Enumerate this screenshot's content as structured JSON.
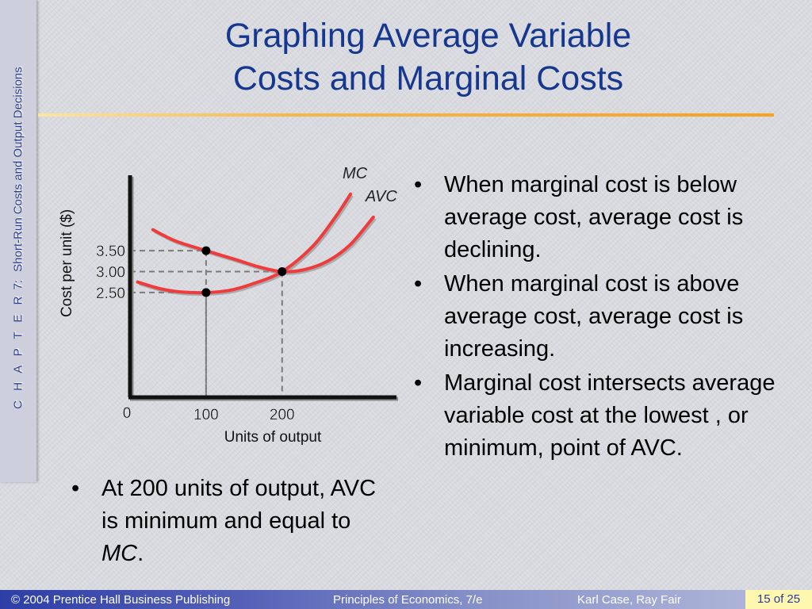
{
  "side_label": {
    "chapter": "C H A P T E R",
    "number": "7:",
    "title": "Short-Run Costs and Output Decisions"
  },
  "title": {
    "line1": "Graphing Average Variable",
    "line2": "Costs and Marginal Costs"
  },
  "colors": {
    "title": "#16378f",
    "rule": "#f4a326",
    "curve": "#ef3b3b",
    "curve_shadow": "#8a8a8a"
  },
  "chart_data": {
    "type": "line",
    "ylabel": "Cost per unit ($)",
    "xlabel": "Units of output",
    "origin_label": "0",
    "x_ticks": [
      {
        "value": 100,
        "label": "100"
      },
      {
        "value": 200,
        "label": "200"
      }
    ],
    "y_ticks": [
      {
        "value": 3.5,
        "label": "3.50"
      },
      {
        "value": 3.0,
        "label": "3.00"
      },
      {
        "value": 2.5,
        "label": "2.50"
      }
    ],
    "xlim": [
      0,
      340
    ],
    "ylim": [
      0,
      5.3
    ],
    "grid": false,
    "series": [
      {
        "name": "MC",
        "x": [
          10,
          40,
          70,
          100,
          130,
          160,
          200,
          240,
          270,
          290
        ],
        "y": [
          2.75,
          2.59,
          2.51,
          2.5,
          2.55,
          2.7,
          3.0,
          3.6,
          4.3,
          4.85
        ]
      },
      {
        "name": "AVC",
        "x": [
          30,
          60,
          100,
          140,
          170,
          200,
          230,
          260,
          290,
          320
        ],
        "y": [
          4.0,
          3.73,
          3.5,
          3.28,
          3.11,
          3.0,
          3.05,
          3.25,
          3.65,
          4.3
        ]
      }
    ],
    "points": [
      {
        "x": 100,
        "y": 3.5
      },
      {
        "x": 100,
        "y": 2.5
      },
      {
        "x": 200,
        "y": 3.0
      }
    ]
  },
  "bullets_right": [
    "When marginal cost is below average cost, average cost is declining.",
    "When marginal cost is above average cost, average cost is increasing.",
    "Marginal cost intersects average variable cost at the lowest , or minimum, point of AVC."
  ],
  "bullet_left": {
    "text": "At 200 units of output, AVC is minimum and equal to ",
    "emphasis": "MC",
    "tail": "."
  },
  "bullet_symbol": "•",
  "footer": {
    "copyright": "© 2004 Prentice Hall Business Publishing",
    "book": "Principles of Economics, 7/e",
    "authors": "Karl Case, Ray Fair",
    "page": "15 of 25"
  }
}
